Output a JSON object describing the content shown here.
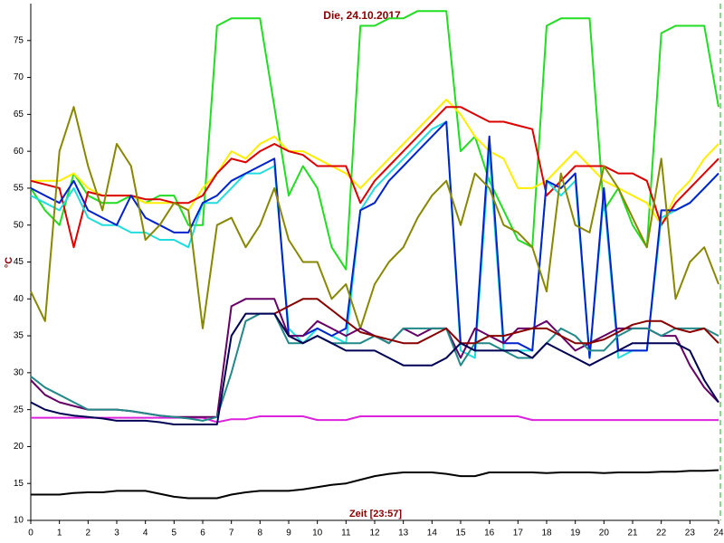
{
  "chart_data": {
    "type": "line",
    "title": "Die, 24.10.2017",
    "x_label": "Zeit [23:57]",
    "y_label": "°C",
    "x": [
      0,
      0.5,
      1,
      1.5,
      2,
      2.5,
      3,
      3.5,
      4,
      4.5,
      5,
      5.5,
      6,
      6.5,
      7,
      7.5,
      8,
      8.5,
      9,
      9.5,
      10,
      10.5,
      11,
      11.5,
      12,
      12.5,
      13,
      13.5,
      14,
      14.5,
      15,
      15.5,
      16,
      16.5,
      17,
      17.5,
      18,
      18.5,
      19,
      19.5,
      20,
      20.5,
      21,
      21.5,
      22,
      22.5,
      23,
      23.5,
      24
    ],
    "xlim": [
      0,
      24
    ],
    "xticks": [
      0,
      1,
      2,
      3,
      4,
      5,
      6,
      7,
      8,
      9,
      10,
      11,
      12,
      13,
      14,
      15,
      16,
      17,
      18,
      19,
      20,
      21,
      22,
      23,
      24
    ],
    "ylim": [
      10,
      80
    ],
    "yticks": [
      10,
      15,
      20,
      25,
      30,
      35,
      40,
      45,
      50,
      55,
      60,
      65,
      70,
      75
    ],
    "series": [
      {
        "color": "#22dd22",
        "values": [
          55,
          52,
          50,
          57,
          54,
          53,
          53,
          54,
          53,
          54,
          54,
          50,
          50,
          77,
          78,
          78,
          78,
          66,
          54,
          58,
          55,
          47,
          44,
          77,
          77,
          78,
          78,
          79,
          79,
          79,
          60,
          62,
          56,
          52,
          48,
          47,
          77,
          78,
          78,
          78,
          52,
          55,
          50,
          47,
          76,
          77,
          77,
          77,
          66
        ]
      },
      {
        "color": "#ffee00",
        "values": [
          56,
          56,
          56,
          57,
          55,
          54,
          54,
          54,
          53,
          53,
          53,
          52,
          55,
          57,
          60,
          59,
          61,
          62,
          60,
          60,
          59,
          58,
          57,
          55,
          57,
          59,
          61,
          63,
          65,
          67,
          65,
          62,
          60,
          59,
          55,
          55,
          56,
          58,
          60,
          58,
          56,
          55,
          54,
          53,
          50,
          54,
          56,
          59,
          61
        ]
      },
      {
        "color": "#dd0000",
        "values": [
          56,
          55.5,
          55,
          47,
          54.5,
          54,
          54,
          54,
          53.5,
          53.5,
          53,
          53,
          54,
          57,
          59,
          58.5,
          60,
          61,
          60,
          59.5,
          58,
          58,
          58,
          53,
          56,
          58,
          60,
          62,
          64,
          66,
          66,
          65,
          64,
          64,
          63.5,
          63,
          54,
          56,
          58,
          58,
          58,
          57,
          57,
          56,
          50,
          53,
          55,
          57,
          59
        ]
      },
      {
        "color": "#22dddd",
        "values": [
          54,
          53,
          52,
          55,
          51,
          50,
          50,
          49,
          49,
          48,
          48,
          47,
          53,
          53,
          55,
          57,
          57,
          58,
          36,
          34,
          36,
          35,
          34,
          52,
          55,
          57,
          59,
          61,
          63,
          64,
          33,
          32,
          60,
          33,
          33,
          33,
          56,
          54,
          56,
          32,
          54,
          32,
          33,
          33,
          51,
          52,
          53,
          55,
          57
        ]
      },
      {
        "color": "#0022cc",
        "values": [
          55,
          54,
          53,
          56,
          52,
          51,
          50,
          54,
          51,
          50,
          49,
          49,
          53,
          54,
          56,
          57,
          58,
          59,
          35,
          35,
          36,
          35,
          36,
          52,
          53,
          56,
          58,
          60,
          62,
          64,
          34,
          33,
          62,
          34,
          34,
          33,
          56,
          55,
          57,
          32,
          55,
          33,
          33,
          33,
          52,
          52,
          53,
          55,
          57
        ]
      },
      {
        "color": "#888800",
        "values": [
          41,
          37,
          60,
          66,
          58,
          52,
          61,
          58,
          48,
          50,
          53,
          52,
          36,
          50,
          51,
          47,
          50,
          55,
          48,
          45,
          45,
          40,
          42,
          36,
          42,
          45,
          47,
          51,
          54,
          56,
          50,
          57,
          55,
          50,
          49,
          47,
          41,
          57,
          50,
          49,
          58,
          55,
          51,
          47,
          59,
          40,
          45,
          47,
          42
        ]
      },
      {
        "color": "#dd22dd",
        "values": [
          23.9,
          23.9,
          23.9,
          23.9,
          23.9,
          23.9,
          23.9,
          23.9,
          23.9,
          23.9,
          23.9,
          23.9,
          23.9,
          23.3,
          23.7,
          23.7,
          24.1,
          24.1,
          24.1,
          24.1,
          23.6,
          23.6,
          23.6,
          24.1,
          24.1,
          24.1,
          24.1,
          24.1,
          24.1,
          24.1,
          24.1,
          24.1,
          24.1,
          24.1,
          24.1,
          23.6,
          23.6,
          23.6,
          23.6,
          23.6,
          23.6,
          23.6,
          23.6,
          23.6,
          23.6,
          23.6,
          23.6,
          23.6,
          23.6
        ]
      },
      {
        "color": "#000000",
        "values": [
          13.5,
          13.5,
          13.5,
          13.7,
          13.8,
          13.8,
          14,
          14,
          14,
          13.6,
          13.2,
          13,
          13,
          13,
          13.5,
          13.8,
          14,
          14,
          14,
          14.2,
          14.5,
          14.8,
          15,
          15.5,
          16,
          16.3,
          16.5,
          16.5,
          16.5,
          16.3,
          16,
          16,
          16.5,
          16.5,
          16.5,
          16.5,
          16.4,
          16.5,
          16.5,
          16.5,
          16.4,
          16.5,
          16.5,
          16.5,
          16.6,
          16.6,
          16.7,
          16.7,
          16.8
        ]
      },
      {
        "color": "#660066",
        "values": [
          29,
          27,
          26,
          25.5,
          25,
          25,
          25,
          24.8,
          24.5,
          24.2,
          24,
          24,
          24,
          24,
          39,
          40,
          40,
          40,
          35,
          35,
          37,
          36,
          35,
          36,
          35,
          34,
          36,
          35,
          36,
          36,
          32,
          36,
          35,
          34,
          36,
          36,
          37,
          35,
          33,
          34,
          35,
          36,
          36,
          36,
          35,
          35,
          31,
          28,
          26
        ]
      },
      {
        "color": "#228888",
        "values": [
          29.5,
          28,
          27,
          26,
          25,
          25,
          25,
          24.8,
          24.5,
          24.2,
          24,
          23.8,
          23.5,
          24,
          30,
          37,
          38,
          38,
          34,
          34,
          35,
          34,
          34,
          34,
          35,
          34,
          36,
          36,
          36,
          36,
          31,
          34,
          34,
          33,
          32,
          32,
          34,
          36,
          35,
          33,
          33,
          35,
          36,
          36,
          35,
          36,
          36,
          36,
          35
        ]
      },
      {
        "color": "#880000",
        "values": [
          null,
          null,
          null,
          null,
          null,
          null,
          null,
          null,
          null,
          null,
          null,
          null,
          null,
          null,
          null,
          null,
          null,
          38,
          39,
          40,
          40,
          38.5,
          37,
          35.5,
          35,
          34.5,
          34,
          34,
          35,
          36,
          34,
          34,
          35,
          35,
          35.5,
          36,
          36,
          35,
          34,
          34,
          34.5,
          35.5,
          36.5,
          37,
          37,
          36,
          35.5,
          36,
          34
        ]
      },
      {
        "color": "#000055",
        "values": [
          26,
          25,
          24.5,
          24.2,
          24,
          23.8,
          23.5,
          23.5,
          23.5,
          23.3,
          23,
          23,
          23,
          23,
          35,
          38,
          38,
          38,
          35,
          34,
          35,
          34,
          33,
          33,
          33,
          32,
          31,
          31,
          31,
          32,
          34,
          33,
          33,
          33,
          33,
          32,
          34,
          33,
          32,
          31,
          32,
          33,
          34,
          34,
          34,
          34,
          33,
          29,
          26
        ]
      }
    ]
  }
}
